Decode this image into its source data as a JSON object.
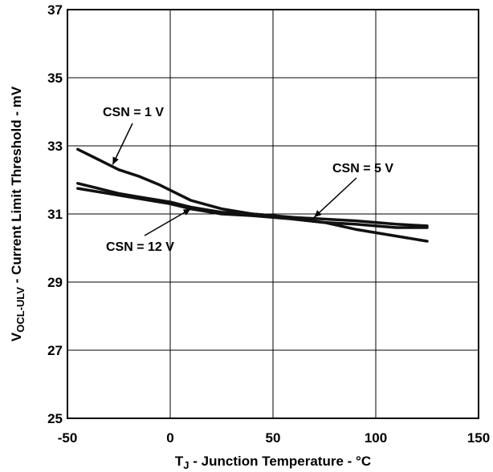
{
  "chart_data": {
    "type": "line",
    "title": "",
    "xlabel": {
      "main": "T",
      "sub": "J",
      "rest": " - Junction Temperature - °C"
    },
    "ylabel": {
      "main": "V",
      "sub": "OCL-ULV",
      "rest": " - Current Limit Threshold - mV"
    },
    "xlim": [
      -50,
      150
    ],
    "ylim": [
      25,
      37
    ],
    "xticks": [
      -50,
      0,
      50,
      100,
      150
    ],
    "yticks": [
      25,
      27,
      29,
      31,
      33,
      35,
      37
    ],
    "grid": true,
    "legend": "none",
    "series": [
      {
        "name": "CSN = 1 V",
        "x": [
          -45,
          -35,
          -25,
          -15,
          -5,
          0,
          10,
          25,
          40,
          50,
          60,
          75,
          90,
          100,
          110,
          125
        ],
        "y": [
          32.9,
          32.6,
          32.3,
          32.1,
          31.85,
          31.7,
          31.4,
          31.15,
          31.0,
          30.95,
          30.85,
          30.75,
          30.55,
          30.45,
          30.35,
          30.2
        ]
      },
      {
        "name": "CSN = 5 V",
        "x": [
          -45,
          -35,
          -25,
          -15,
          0,
          10,
          25,
          40,
          50,
          60,
          75,
          90,
          100,
          110,
          125
        ],
        "y": [
          31.9,
          31.75,
          31.6,
          31.5,
          31.35,
          31.2,
          31.05,
          31.0,
          30.95,
          30.9,
          30.85,
          30.8,
          30.75,
          30.7,
          30.65
        ]
      },
      {
        "name": "CSN = 12 V",
        "x": [
          -45,
          -35,
          -25,
          -15,
          0,
          10,
          25,
          40,
          50,
          60,
          75,
          90,
          100,
          110,
          125
        ],
        "y": [
          31.75,
          31.65,
          31.55,
          31.45,
          31.3,
          31.15,
          31.0,
          30.95,
          30.9,
          30.85,
          30.75,
          30.7,
          30.65,
          30.6,
          30.6
        ]
      }
    ],
    "annotations": [
      {
        "text": "CSN = 1 V",
        "series": 0
      },
      {
        "text": "CSN = 5 V",
        "series": 1
      },
      {
        "text": "CSN = 12 V",
        "series": 2
      }
    ]
  }
}
